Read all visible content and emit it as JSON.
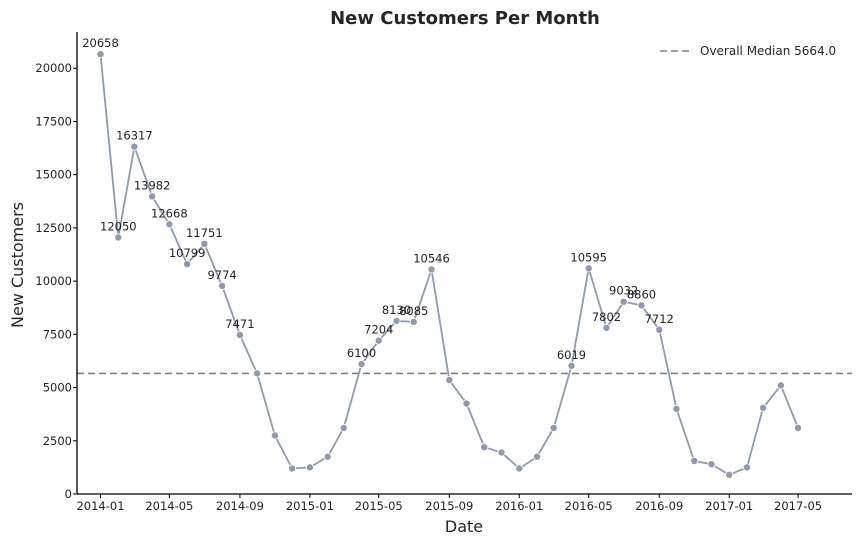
{
  "chart_data": {
    "type": "line",
    "title": "New Customers Per Month",
    "xlabel": "Date",
    "ylabel": "New Customers",
    "ylim": [
      0,
      21700
    ],
    "xlim": [
      "2013-11-21",
      "2017-08-03"
    ],
    "grid": false,
    "legend_position": "top-right",
    "colors": {
      "line": "#8e9ab0",
      "median": "#808080",
      "axis": "#000000"
    },
    "x_ticks": [
      "2014-01",
      "2014-05",
      "2014-09",
      "2015-01",
      "2015-05",
      "2015-09",
      "2016-01",
      "2016-05",
      "2016-09",
      "2017-01",
      "2017-05"
    ],
    "y_ticks": [
      "0",
      "2500",
      "5000",
      "7500",
      "10000",
      "12500",
      "15000",
      "17500",
      "20000"
    ],
    "reference_line": {
      "label": "Overall Median 5664.0",
      "value": 5664.0
    },
    "series": [
      {
        "x": [
          "2014-01",
          "2014-02",
          "2014-03",
          "2014-04",
          "2014-05",
          "2014-06",
          "2014-07",
          "2014-08",
          "2014-09",
          "2014-10",
          "2014-11",
          "2014-12",
          "2015-01",
          "2015-02",
          "2015-03",
          "2015-04",
          "2015-05",
          "2015-06",
          "2015-07",
          "2015-08",
          "2015-09",
          "2015-10",
          "2015-11",
          "2015-12",
          "2016-01",
          "2016-02",
          "2016-03",
          "2016-04",
          "2016-05",
          "2016-06",
          "2016-07",
          "2016-08",
          "2016-09",
          "2016-10",
          "2016-11",
          "2016-12",
          "2017-01",
          "2017-02",
          "2017-03",
          "2017-04",
          "2017-05"
        ],
        "values": [
          20658,
          12050,
          16317,
          13982,
          12668,
          10799,
          11751,
          9774,
          7471,
          5664,
          2750,
          1200,
          1250,
          1750,
          3100,
          6100,
          7204,
          8130,
          8085,
          10546,
          5350,
          4250,
          2200,
          1950,
          1200,
          1750,
          3100,
          6019,
          10595,
          7802,
          9032,
          8860,
          7712,
          4000,
          1550,
          1400,
          900,
          1250,
          4050,
          5100,
          3100
        ],
        "labels": [
          "20658",
          "12050",
          "16317",
          "13982",
          "12668",
          "10799",
          "11751",
          "9774",
          "7471",
          "",
          "",
          "",
          "",
          "",
          "",
          "6100",
          "7204",
          "8130",
          "8085",
          "10546",
          "",
          "",
          "",
          "",
          "",
          "",
          "",
          "6019",
          "10595",
          "7802",
          "9032",
          "8860",
          "7712",
          "",
          "",
          "",
          "",
          "",
          "",
          "",
          ""
        ]
      }
    ]
  }
}
